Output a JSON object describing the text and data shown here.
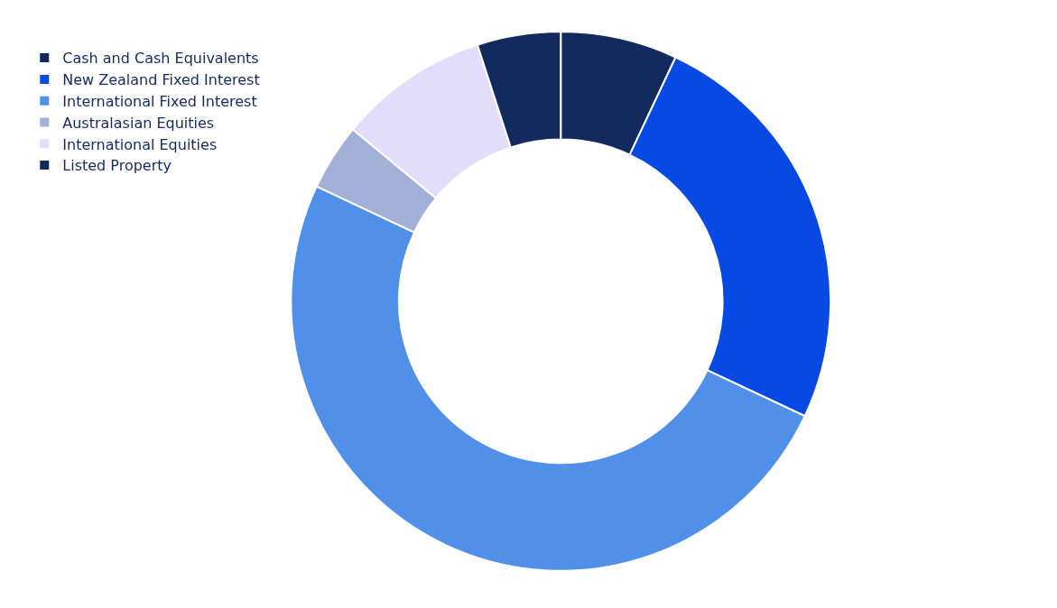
{
  "chart_data": {
    "type": "donut",
    "categories": [
      "Cash and Cash Equivalents",
      "New Zealand Fixed Interest",
      "International Fixed Interest",
      "Australasian Equities",
      "International Equities",
      "Listed Property"
    ],
    "values": [
      7,
      25,
      50,
      4,
      9,
      5
    ],
    "colors": [
      "#122a5e",
      "#0749e3",
      "#5090e8",
      "#a2afd6",
      "#e1ddfa",
      "#122a5e"
    ],
    "legend": "top left"
  }
}
